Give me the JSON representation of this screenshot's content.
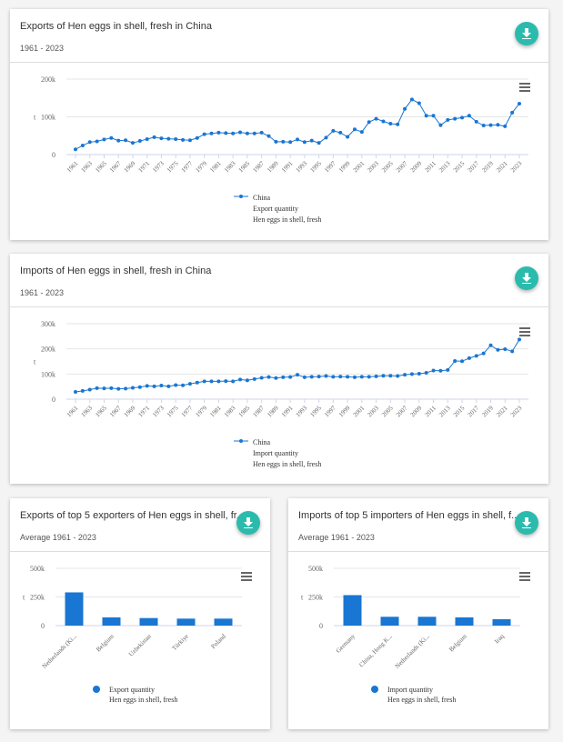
{
  "colors": {
    "series": "#1976d2",
    "button": "#2bbbad"
  },
  "cards": [
    {
      "title": "Exports of Hen eggs in shell, fresh in China",
      "subtitle": "1961 - 2023",
      "download_icon": "download-icon",
      "menu_icon": "hamburger-menu-icon"
    },
    {
      "title": "Imports of Hen eggs in shell, fresh in China",
      "subtitle": "1961 - 2023",
      "download_icon": "download-icon",
      "menu_icon": "hamburger-menu-icon"
    },
    {
      "title": "Exports of top 5 exporters of Hen eggs in shell, fr...",
      "subtitle": "Average 1961 - 2023",
      "download_icon": "download-icon",
      "menu_icon": "hamburger-menu-icon"
    },
    {
      "title": "Imports of top 5 importers of Hen eggs in shell, f...",
      "subtitle": "Average 1961 - 2023",
      "download_icon": "download-icon",
      "menu_icon": "hamburger-menu-icon"
    }
  ],
  "chart_data": [
    {
      "type": "line",
      "ylabel": "t",
      "ylim": [
        0,
        200000
      ],
      "yticks": [
        "0",
        "100k",
        "200k"
      ],
      "ytick_values": [
        0,
        100000,
        200000
      ],
      "grid": true,
      "legend": [
        "China",
        "Export quantity",
        "Hen eggs in shell, fresh"
      ],
      "legend_placement": "bottom",
      "x": [
        1961,
        1962,
        1963,
        1964,
        1965,
        1966,
        1967,
        1968,
        1969,
        1970,
        1971,
        1972,
        1973,
        1974,
        1975,
        1976,
        1977,
        1978,
        1979,
        1980,
        1981,
        1982,
        1983,
        1984,
        1985,
        1986,
        1987,
        1988,
        1989,
        1990,
        1991,
        1992,
        1993,
        1994,
        1995,
        1996,
        1997,
        1998,
        1999,
        2000,
        2001,
        2002,
        2003,
        2004,
        2005,
        2006,
        2007,
        2008,
        2009,
        2010,
        2011,
        2012,
        2013,
        2014,
        2015,
        2016,
        2017,
        2018,
        2019,
        2020,
        2021,
        2022,
        2023
      ],
      "series": [
        {
          "name": "China",
          "values": [
            14000,
            24000,
            33000,
            35000,
            40000,
            44000,
            37000,
            38000,
            31000,
            36000,
            41000,
            46000,
            43000,
            42000,
            41000,
            39000,
            38000,
            44000,
            54000,
            56000,
            58000,
            57000,
            56000,
            59000,
            56000,
            56000,
            58000,
            49000,
            34000,
            34000,
            33000,
            40000,
            33000,
            37000,
            31000,
            45000,
            63000,
            58000,
            47000,
            67000,
            60000,
            86000,
            95000,
            88000,
            82000,
            80000,
            121000,
            146000,
            136000,
            103000,
            103000,
            78000,
            92000,
            95000,
            98000,
            103000,
            87000,
            77000,
            78000,
            79000,
            75000,
            111000,
            135000
          ]
        }
      ]
    },
    {
      "type": "line",
      "ylabel": "t",
      "ylim": [
        0,
        300000
      ],
      "yticks": [
        "0",
        "100k",
        "200k",
        "300k"
      ],
      "ytick_values": [
        0,
        100000,
        200000,
        300000
      ],
      "grid": true,
      "legend": [
        "China",
        "Import quantity",
        "Hen eggs in shell, fresh"
      ],
      "legend_placement": "bottom",
      "x": [
        1961,
        1962,
        1963,
        1964,
        1965,
        1966,
        1967,
        1968,
        1969,
        1970,
        1971,
        1972,
        1973,
        1974,
        1975,
        1976,
        1977,
        1978,
        1979,
        1980,
        1981,
        1982,
        1983,
        1984,
        1985,
        1986,
        1987,
        1988,
        1989,
        1990,
        1991,
        1992,
        1993,
        1994,
        1995,
        1996,
        1997,
        1998,
        1999,
        2000,
        2001,
        2002,
        2003,
        2004,
        2005,
        2006,
        2007,
        2008,
        2009,
        2010,
        2011,
        2012,
        2013,
        2014,
        2015,
        2016,
        2017,
        2018,
        2019,
        2020,
        2021,
        2022,
        2023
      ],
      "series": [
        {
          "name": "China",
          "values": [
            29000,
            33000,
            38000,
            44000,
            43000,
            44000,
            41000,
            42000,
            45000,
            48000,
            53000,
            51000,
            54000,
            51000,
            56000,
            55000,
            61000,
            66000,
            71000,
            71000,
            71000,
            72000,
            71000,
            78000,
            75000,
            80000,
            85000,
            88000,
            84000,
            87000,
            88000,
            97000,
            87000,
            89000,
            90000,
            92000,
            89000,
            90000,
            89000,
            87000,
            89000,
            89000,
            91000,
            93000,
            93000,
            92000,
            97000,
            100000,
            101000,
            105000,
            114000,
            113000,
            116000,
            152000,
            151000,
            163000,
            172000,
            182000,
            214000,
            196000,
            199000,
            190000,
            237000
          ]
        }
      ]
    },
    {
      "type": "bar",
      "ylabel": "t",
      "ylim": [
        0,
        500000
      ],
      "yticks": [
        "0",
        "250k",
        "500k"
      ],
      "ytick_values": [
        0,
        250000,
        500000
      ],
      "grid": true,
      "categories": [
        "Netherlands (Ki...",
        "Belgium",
        "Uzbekistan",
        "Türkiye",
        "Poland"
      ],
      "legend": [
        "Export quantity",
        "Hen eggs in shell, fresh"
      ],
      "legend_placement": "bottom",
      "series": [
        {
          "name": "Export quantity",
          "values": [
            290000,
            72000,
            66000,
            61000,
            61000
          ]
        }
      ]
    },
    {
      "type": "bar",
      "ylabel": "t",
      "ylim": [
        0,
        500000
      ],
      "yticks": [
        "0",
        "250k",
        "500k"
      ],
      "ytick_values": [
        0,
        250000,
        500000
      ],
      "grid": true,
      "categories": [
        "Germany",
        "China, Hong K...",
        "Netherlands (Ki...",
        "Belgium",
        "Iraq"
      ],
      "legend": [
        "Import quantity",
        "Hen eggs in shell, fresh"
      ],
      "legend_placement": "bottom",
      "series": [
        {
          "name": "Import quantity",
          "values": [
            266000,
            77000,
            77000,
            72000,
            56000
          ]
        }
      ]
    }
  ]
}
